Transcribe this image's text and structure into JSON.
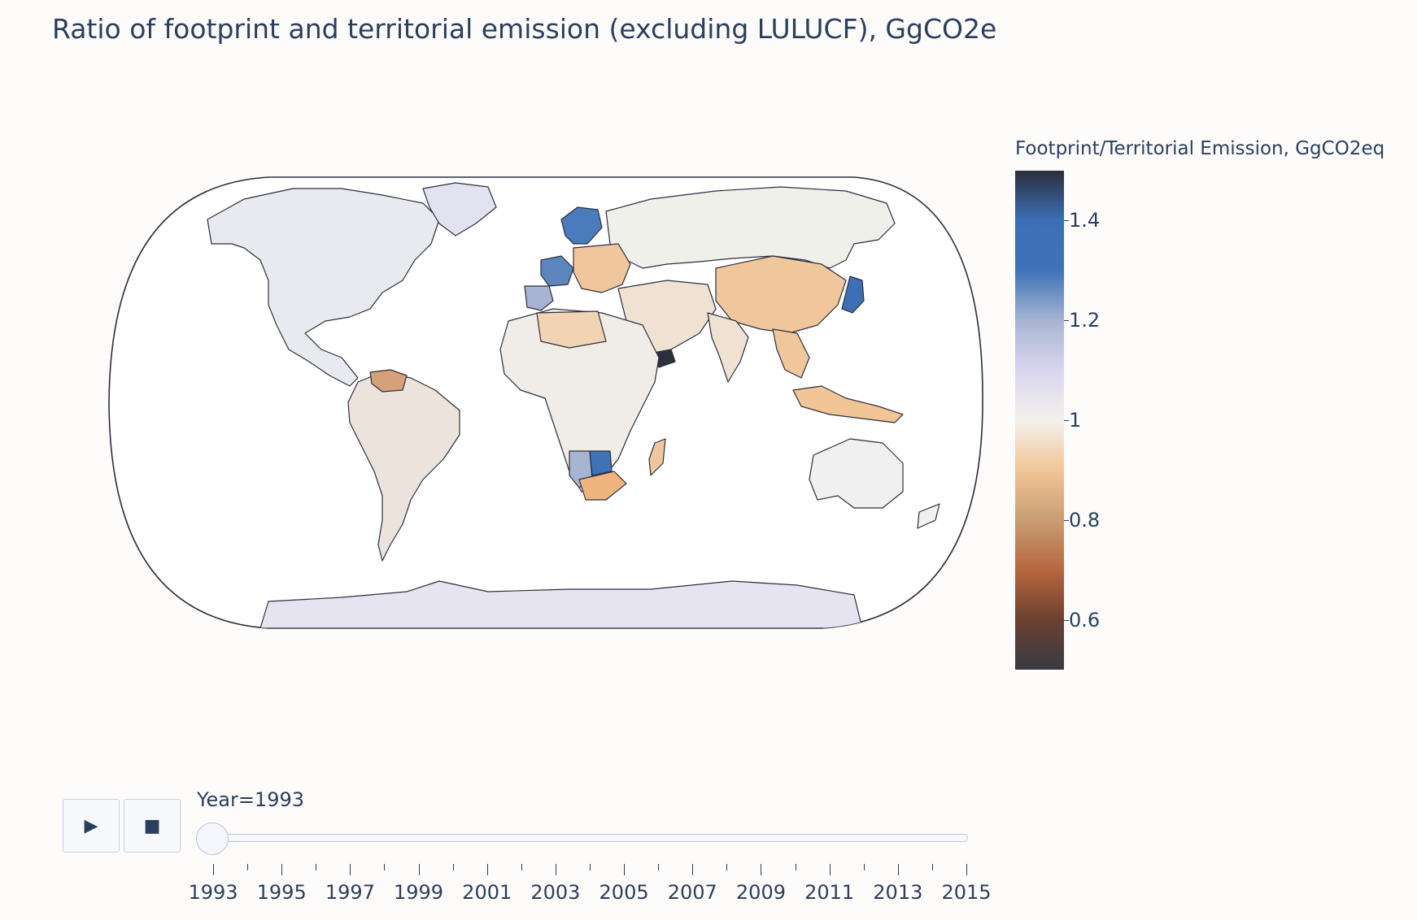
{
  "title": "Ratio of footprint and territorial emission (excluding LULUCF), GgCO2e",
  "colorbar": {
    "title": "Footprint/Territorial Emission, GgCO2eq",
    "range": [
      0.5,
      1.5
    ],
    "ticks": [
      {
        "value": 1.4,
        "label": "1.4"
      },
      {
        "value": 1.2,
        "label": "1.2"
      },
      {
        "value": 1.0,
        "label": "1"
      },
      {
        "value": 0.8,
        "label": "0.8"
      },
      {
        "value": 0.6,
        "label": "0.6"
      }
    ],
    "colors": {
      "c050": "#393a44",
      "c060": "#6b4030",
      "c070": "#b7673f",
      "c080": "#c99d74",
      "c090": "#f2c597",
      "c100": "#f3f1ec",
      "c110": "#d9d6ee",
      "c120": "#a7b4d2",
      "c130": "#3e73b8",
      "c140": "#3b6fb7",
      "c150": "#2c2f3c"
    }
  },
  "player": {
    "play_icon": "play-icon",
    "stop_icon": "stop-icon",
    "current_label": "Year=1993",
    "current_year": 1993,
    "years": [
      1993,
      1994,
      1995,
      1996,
      1997,
      1998,
      1999,
      2000,
      2001,
      2002,
      2003,
      2004,
      2005,
      2006,
      2007,
      2008,
      2009,
      2010,
      2011,
      2012,
      2013,
      2014,
      2015
    ],
    "labels": [
      "1993",
      "1995",
      "1997",
      "1999",
      "2001",
      "2003",
      "2005",
      "2007",
      "2009",
      "2011",
      "2013",
      "2015"
    ]
  },
  "map": {
    "projection": "natural-earth",
    "colors": {
      "northAmerica": "#e9eaf0",
      "greenland": "#e2e2f0",
      "southAmerica": "#ece4dc",
      "russia": "#f0f0ea",
      "china": "#f0c79c",
      "india": "#efe2d2",
      "africa": "#f0ede6",
      "australia": "#eff0ef",
      "antarctica": "#e6e4f0",
      "japan": "#3b6fb7",
      "southAfrica": "#f0b47e",
      "botswana": "#3e73b8",
      "namibia": "#a7b4d2",
      "france": "#5d86c0",
      "spain": "#a7b4d2",
      "scandinavia": "#4a7bbd",
      "eeurope": "#f0c79c",
      "yemen": "#2c2f3c",
      "venezuela": "#d6a07a",
      "seasia": "#f0c79c",
      "indonesia": "#f2c597",
      "madagascar": "#f0c79c",
      "libya": "#f2d3b4",
      "algeria": "#f2d3b4"
    }
  }
}
